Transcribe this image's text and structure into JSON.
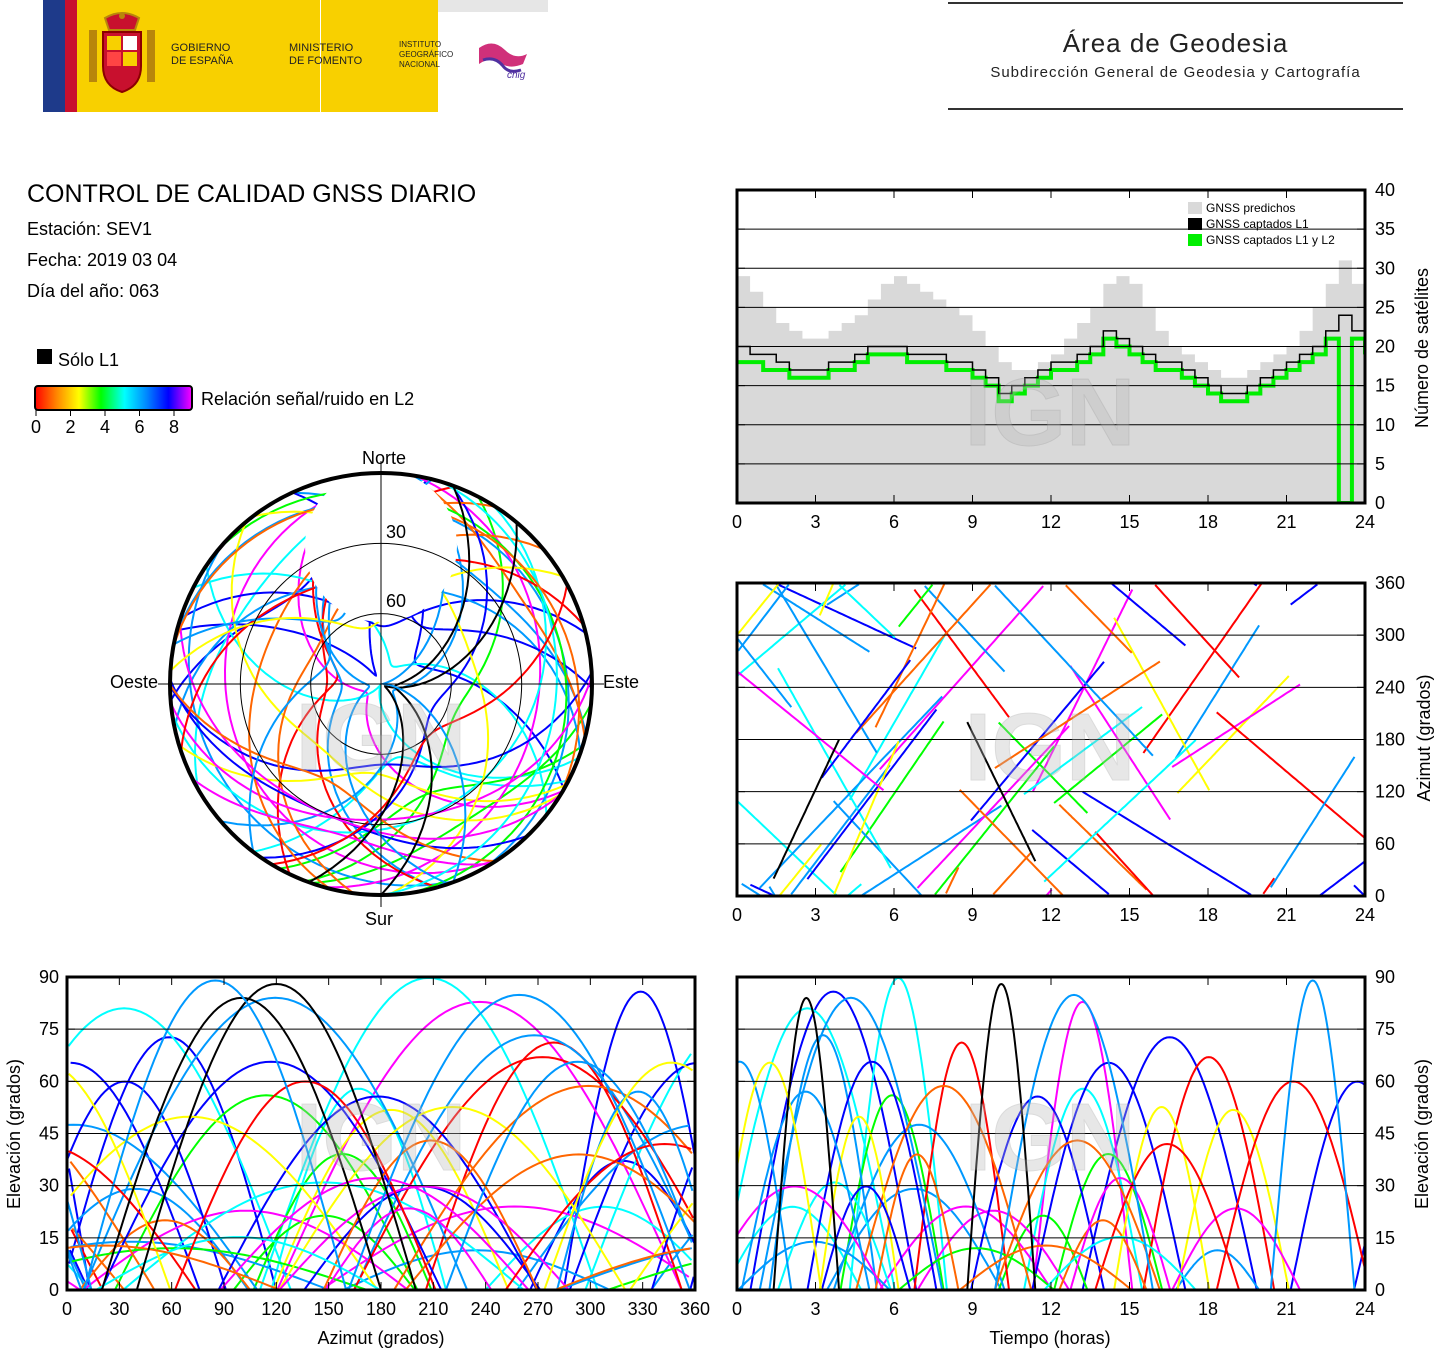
{
  "header": {
    "gob_line1": "GOBIERNO",
    "gob_line2": "DE ESPAÑA",
    "min_line1": "MINISTERIO",
    "min_line2": "DE FOMENTO",
    "inst_line1": "INSTITUTO",
    "inst_line2": "GEOGRÁFICO",
    "inst_line3": "NACIONAL",
    "cnig_text": "cnig",
    "area_title": "Área de Geodesia",
    "area_subtitle": "Subdirección General de Geodesia y Cartografía"
  },
  "report": {
    "title": "CONTROL DE CALIDAD GNSS DIARIO",
    "station": "Estación: SEV1",
    "date": "Fecha: 2019 03 04",
    "doy": "Día del año: 063"
  },
  "legend": {
    "l1_only": "Sólo L1",
    "snr_label": "Relación señal/ruido en L2",
    "snr_ticks": [
      "0",
      "2",
      "4",
      "6",
      "8"
    ],
    "black": "#000000",
    "gradient": [
      "#ff0000",
      "#ff8800",
      "#ffff00",
      "#00ff00",
      "#00ffff",
      "#0088ff",
      "#0000ff",
      "#ff00ff"
    ]
  },
  "watermark": "IGN",
  "colors": {
    "predicted": "#d9d9d9",
    "l1": "#000000",
    "l1l2": "#00ee00"
  },
  "chart_data": [
    {
      "type": "polar",
      "name": "skyplot",
      "direction_labels": {
        "north": "Norte",
        "south": "Sur",
        "west": "Oeste",
        "east": "Este"
      },
      "elevation_rings": [
        30,
        60
      ],
      "ring_labels": [
        "30",
        "60"
      ],
      "satellite_colors": [
        "#ff0000",
        "#ff6600",
        "#ffff00",
        "#00ff00",
        "#00ffff",
        "#0099ff",
        "#0000ff",
        "#ff00ff",
        "#000000"
      ]
    },
    {
      "type": "area",
      "name": "satellite-count",
      "x": [
        0,
        0.5,
        1,
        1.5,
        2,
        2.5,
        3,
        3.5,
        4,
        4.5,
        5,
        5.5,
        6,
        6.5,
        7,
        7.5,
        8,
        8.5,
        9,
        9.5,
        10,
        10.5,
        11,
        11.5,
        12,
        12.5,
        13,
        13.5,
        14,
        14.5,
        15,
        15.5,
        16,
        16.5,
        17,
        17.5,
        18,
        18.5,
        19,
        19.5,
        20,
        20.5,
        21,
        21.5,
        22,
        22.5,
        23,
        23.5,
        24
      ],
      "series": [
        {
          "name": "GNSS predichos",
          "values": [
            29,
            27,
            25,
            23,
            22,
            21,
            21,
            22,
            23,
            24,
            26,
            28,
            29,
            28,
            27,
            26,
            25,
            24,
            22,
            20,
            18,
            17,
            17,
            18,
            19,
            21,
            23,
            25,
            28,
            29,
            28,
            25,
            22,
            20,
            19,
            18,
            17,
            16,
            16,
            17,
            18,
            19,
            20,
            22,
            25,
            28,
            31,
            28,
            24
          ]
        },
        {
          "name": "GNSS captados L1",
          "values": [
            20,
            19,
            19,
            18,
            17,
            17,
            17,
            18,
            18,
            19,
            20,
            20,
            20,
            19,
            19,
            19,
            18,
            18,
            17,
            16,
            14,
            15,
            16,
            17,
            18,
            18,
            19,
            20,
            22,
            21,
            20,
            19,
            18,
            18,
            17,
            16,
            15,
            14,
            14,
            15,
            16,
            17,
            18,
            19,
            20,
            22,
            24,
            22,
            20
          ]
        },
        {
          "name": "GNSS captados L1 y L2",
          "values": [
            18,
            18,
            17,
            17,
            16,
            16,
            16,
            17,
            17,
            18,
            19,
            19,
            19,
            18,
            18,
            18,
            17,
            17,
            16,
            15,
            13,
            14,
            15,
            16,
            17,
            17,
            18,
            19,
            21,
            20,
            19,
            18,
            17,
            17,
            16,
            15,
            14,
            13,
            13,
            14,
            15,
            16,
            17,
            18,
            19,
            21,
            0,
            21,
            19
          ]
        }
      ],
      "xlim": [
        0,
        24
      ],
      "ylim": [
        0,
        40
      ],
      "x_ticks": [
        "0",
        "3",
        "6",
        "9",
        "12",
        "15",
        "18",
        "21",
        "24"
      ],
      "y_ticks": [
        "0",
        "5",
        "10",
        "15",
        "20",
        "25",
        "30",
        "35",
        "40"
      ],
      "ylabel": "Número de satélites"
    },
    {
      "type": "scatter",
      "name": "azimuth-vs-time",
      "xlim": [
        0,
        24
      ],
      "ylim": [
        0,
        360
      ],
      "x_ticks": [
        "0",
        "3",
        "6",
        "9",
        "12",
        "15",
        "18",
        "21",
        "24"
      ],
      "y_ticks": [
        "0",
        "60",
        "120",
        "180",
        "240",
        "300",
        "360"
      ],
      "ylabel": "Azimut (grados)"
    },
    {
      "type": "scatter",
      "name": "elevation-vs-azimuth",
      "xlim": [
        0,
        360
      ],
      "ylim": [
        0,
        90
      ],
      "x_ticks": [
        "0",
        "30",
        "60",
        "90",
        "120",
        "150",
        "180",
        "210",
        "240",
        "270",
        "300",
        "330",
        "360"
      ],
      "y_ticks": [
        "0",
        "15",
        "30",
        "45",
        "60",
        "75",
        "90"
      ],
      "xlabel": "Azimut (grados)",
      "ylabel": "Elevación (grados)"
    },
    {
      "type": "scatter",
      "name": "elevation-vs-time",
      "xlim": [
        0,
        24
      ],
      "ylim": [
        0,
        90
      ],
      "x_ticks": [
        "0",
        "3",
        "6",
        "9",
        "12",
        "15",
        "18",
        "21",
        "24"
      ],
      "y_ticks": [
        "0",
        "15",
        "30",
        "45",
        "60",
        "75",
        "90"
      ],
      "xlabel": "Tiempo (horas)",
      "ylabel": "Elevación (grados)"
    }
  ]
}
